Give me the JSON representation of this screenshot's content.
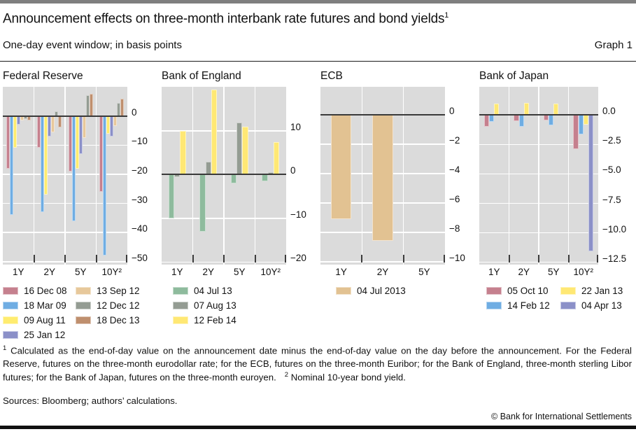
{
  "header": {
    "title": "Announcement effects on three-month interbank rate futures and bond yields",
    "title_sup": "1",
    "subtitle": "One-day event window; in basis points",
    "graph_label": "Graph 1"
  },
  "chart_data": {
    "type": "bar",
    "unit": "basis points",
    "grid": true,
    "legend_position": "below",
    "panels": [
      {
        "title": "Federal Reserve",
        "categories": [
          "1Y",
          "2Y",
          "5Y",
          "10Y²"
        ],
        "ylim": [
          -51,
          10
        ],
        "ytick_vals": [
          0,
          -10,
          -20,
          -30,
          -40,
          -50
        ],
        "ytick_labels": [
          "0",
          "−10",
          "−20",
          "−30",
          "−40",
          "−50"
        ],
        "bar_frac": 0.79,
        "series": [
          {
            "name": "16 Dec 08",
            "color": "#c5808e",
            "values": [
              -18,
              -11,
              -19,
              -26
            ]
          },
          {
            "name": "18 Mar 09",
            "color": "#6fade3",
            "values": [
              -34,
              -33,
              -36,
              -48
            ]
          },
          {
            "name": "09 Aug 11",
            "color": "#ffec6f",
            "values": [
              -11,
              -27,
              -18,
              -6
            ]
          },
          {
            "name": "25 Jan 12",
            "color": "#8b90c8",
            "values": [
              -3,
              -7,
              -13,
              -7
            ]
          },
          {
            "name": "13 Sep 12",
            "color": "#e7c89b",
            "values": [
              -1.5,
              -5.5,
              -7.5,
              -3.5
            ]
          },
          {
            "name": "12 Dec 12",
            "color": "#949c93",
            "values": [
              -1,
              1.5,
              7,
              4.5
            ]
          },
          {
            "name": "18 Dec 13",
            "color": "#bf8f6e",
            "values": [
              -1.5,
              -4,
              7.5,
              6
            ]
          }
        ],
        "legend_cols": [
          [
            0,
            1,
            2,
            3
          ],
          [
            4,
            5,
            6
          ]
        ]
      },
      {
        "title": "Bank of England",
        "categories": [
          "1Y",
          "2Y",
          "5Y",
          "10Y²"
        ],
        "ylim": [
          -20.6,
          20.1
        ],
        "ytick_vals": [
          10,
          0,
          -10,
          -20
        ],
        "ytick_labels": [
          "10",
          "0",
          "−10",
          "−20"
        ],
        "bar_frac": 0.56,
        "series": [
          {
            "name": "04 Jul 13",
            "color": "#8ebb9d",
            "values": [
              -10,
              -13,
              -2,
              -1.5
            ]
          },
          {
            "name": "07 Aug 13",
            "color": "#949c93",
            "values": [
              -0.5,
              3,
              12,
              0.5
            ]
          },
          {
            "name": "12 Feb 14",
            "color": "#ffe874",
            "values": [
              10,
              19.5,
              11,
              7.5
            ]
          }
        ],
        "legend_cols": [
          [
            0,
            1,
            2
          ]
        ]
      },
      {
        "title": "ECB",
        "categories": [
          "1Y",
          "2Y",
          "5Y"
        ],
        "ylim": [
          -10.2,
          1.9
        ],
        "ytick_vals": [
          0,
          -2,
          -4,
          -6,
          -8,
          -10
        ],
        "ytick_labels": [
          "0",
          "−2",
          "−4",
          "−6",
          "−8",
          "−10"
        ],
        "bar_frac": 0.5,
        "series": [
          {
            "name": "04 Jul 2013",
            "color": "#e2c292",
            "values": [
              -7.1,
              -8.6,
              null
            ]
          }
        ],
        "legend_cols": [
          [
            0
          ]
        ]
      },
      {
        "title": "Bank of Japan",
        "categories": [
          "1Y",
          "2Y",
          "5Y",
          "10Y²"
        ],
        "ylim": [
          -12.7,
          2.4
        ],
        "ytick_vals": [
          0,
          -2.5,
          -5,
          -7.5,
          -10,
          -12.5
        ],
        "ytick_labels": [
          "0.0",
          "−2.5",
          "−5.0",
          "−7.5",
          "−10.0",
          "−12.5"
        ],
        "bar_frac": 0.68,
        "series": [
          {
            "name": "05 Oct 10",
            "color": "#c5808e",
            "values": [
              -1,
              -0.5,
              -0.45,
              -2.9
            ]
          },
          {
            "name": "14 Feb 12",
            "color": "#6fade3",
            "values": [
              -0.6,
              -1,
              -0.9,
              -1.65
            ]
          },
          {
            "name": "22 Jan 13",
            "color": "#ffe874",
            "values": [
              1,
              1.05,
              1,
              -0.8
            ]
          },
          {
            "name": "04 Apr 13",
            "color": "#8b90c8",
            "values": [
              null,
              null,
              null,
              -11.6
            ]
          }
        ],
        "legend_cols": [
          [
            0,
            1
          ],
          [
            2,
            3
          ]
        ]
      }
    ]
  },
  "footnotes": {
    "fn1_sup": "1",
    "fn1": "Calculated as the end-of-day value on the announcement date minus the end-of-day value on the day before the announcement. For the Federal Reserve, futures on the three-month eurodollar rate; for the ECB, futures on the three-month Euribor; for the Bank of England, three-month sterling Libor futures; for the Bank of Japan, futures on the three-month euroyen.",
    "fn2_sup": "2",
    "fn2": "Nominal 10-year bond yield."
  },
  "sources": "Sources: Bloomberg; authors’ calculations.",
  "copyright": "© Bank for International Settlements",
  "colors": {
    "plot_background": "#dbdbdb",
    "gridline": "#ffffff",
    "zero_line": "#3a3a3a",
    "top_bar": "#7f7f7f",
    "bottom_bar": "#111111"
  }
}
